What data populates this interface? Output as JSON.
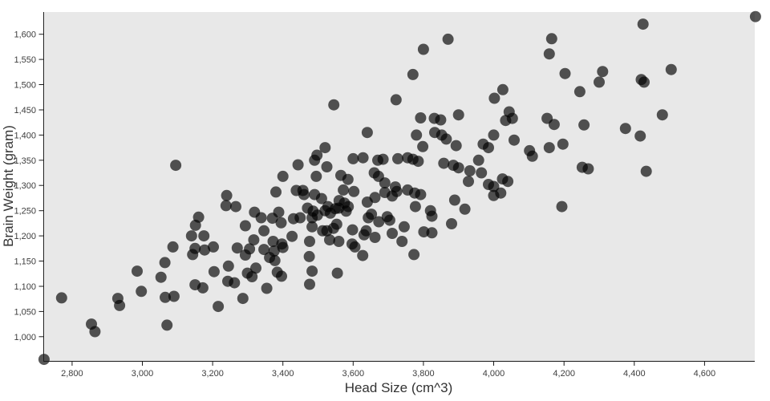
{
  "page": {
    "background": "#ffffff"
  },
  "chart_data": {
    "type": "scatter",
    "title": "",
    "xlabel": "Head Size (cm^3)",
    "ylabel": "Brain Weight (gram)",
    "x_domain": [
      2718,
      4743
    ],
    "y_domain": [
      952,
      1644
    ],
    "grid": false,
    "legend": null,
    "x_ticks": {
      "values": [
        2800,
        3000,
        3200,
        3400,
        3600,
        3800,
        4000,
        4200,
        4400,
        4600
      ],
      "labels": [
        "2,800",
        "3,000",
        "3,200",
        "3,400",
        "3,600",
        "3,800",
        "4,000",
        "4,200",
        "4,400",
        "4,600"
      ]
    },
    "y_ticks": {
      "values": [
        1000,
        1050,
        1100,
        1150,
        1200,
        1250,
        1300,
        1350,
        1400,
        1450,
        1500,
        1550,
        1600
      ],
      "labels": [
        "1,000",
        "1,050",
        "1,100",
        "1,150",
        "1,200",
        "1,250",
        "1,300",
        "1,350",
        "1,400",
        "1,450",
        "1,500",
        "1,550",
        "1,600"
      ]
    },
    "style": {
      "plot_bg": "#e8e8e8",
      "point_color": "#000000",
      "point_opacity": 0.66,
      "point_radius": 7,
      "axis_color": "#1a1a1a",
      "tick_label_color": "#3d3d3d",
      "title_color": "#333333"
    },
    "points": [
      [
        2720,
        955
      ],
      [
        2770,
        1077
      ],
      [
        2855,
        1025
      ],
      [
        2865,
        1010
      ],
      [
        2930,
        1076
      ],
      [
        2935,
        1062
      ],
      [
        2985,
        1130
      ],
      [
        2997,
        1090
      ],
      [
        3053,
        1118
      ],
      [
        3064,
        1147
      ],
      [
        3065,
        1078
      ],
      [
        3070,
        1023
      ],
      [
        3087,
        1178
      ],
      [
        3090,
        1080
      ],
      [
        3095,
        1340
      ],
      [
        3140,
        1200
      ],
      [
        3143,
        1163
      ],
      [
        3150,
        1175
      ],
      [
        3150,
        1103
      ],
      [
        3151,
        1221
      ],
      [
        3160,
        1237
      ],
      [
        3172,
        1097
      ],
      [
        3175,
        1200
      ],
      [
        3177,
        1172
      ],
      [
        3202,
        1178
      ],
      [
        3204,
        1129
      ],
      [
        3216,
        1060
      ],
      [
        3238,
        1260
      ],
      [
        3240,
        1280
      ],
      [
        3243,
        1110
      ],
      [
        3245,
        1140
      ],
      [
        3262,
        1107
      ],
      [
        3266,
        1258
      ],
      [
        3270,
        1176
      ],
      [
        3286,
        1076
      ],
      [
        3293,
        1162
      ],
      [
        3293,
        1220
      ],
      [
        3299,
        1126
      ],
      [
        3305,
        1174
      ],
      [
        3312,
        1119
      ],
      [
        3317,
        1192
      ],
      [
        3319,
        1247
      ],
      [
        3323,
        1136
      ],
      [
        3338,
        1236
      ],
      [
        3346,
        1210
      ],
      [
        3346,
        1173
      ],
      [
        3354,
        1096
      ],
      [
        3362,
        1157
      ],
      [
        3370,
        1235
      ],
      [
        3372,
        1189
      ],
      [
        3375,
        1170
      ],
      [
        3377,
        1151
      ],
      [
        3380,
        1287
      ],
      [
        3384,
        1128
      ],
      [
        3388,
        1247
      ],
      [
        3395,
        1226
      ],
      [
        3396,
        1120
      ],
      [
        3397,
        1184
      ],
      [
        3400,
        1318
      ],
      [
        3400,
        1177
      ],
      [
        3426,
        1199
      ],
      [
        3430,
        1234
      ],
      [
        3438,
        1290
      ],
      [
        3443,
        1341
      ],
      [
        3449,
        1236
      ],
      [
        3457,
        1290
      ],
      [
        3460,
        1282
      ],
      [
        3470,
        1255
      ],
      [
        3475,
        1159
      ],
      [
        3476,
        1104
      ],
      [
        3476,
        1189
      ],
      [
        3483,
        1130
      ],
      [
        3483,
        1218
      ],
      [
        3483,
        1236
      ],
      [
        3486,
        1249
      ],
      [
        3490,
        1350
      ],
      [
        3490,
        1282
      ],
      [
        3495,
        1318
      ],
      [
        3497,
        1360
      ],
      [
        3498,
        1241
      ],
      [
        3510,
        1274
      ],
      [
        3513,
        1210
      ],
      [
        3520,
        1375
      ],
      [
        3520,
        1250
      ],
      [
        3525,
        1337
      ],
      [
        3525,
        1210
      ],
      [
        3528,
        1258
      ],
      [
        3533,
        1192
      ],
      [
        3535,
        1245
      ],
      [
        3544,
        1215
      ],
      [
        3545,
        1460
      ],
      [
        3549,
        1254
      ],
      [
        3553,
        1223
      ],
      [
        3555,
        1126
      ],
      [
        3559,
        1255
      ],
      [
        3559,
        1189
      ],
      [
        3560,
        1270
      ],
      [
        3565,
        1320
      ],
      [
        3572,
        1291
      ],
      [
        3575,
        1265
      ],
      [
        3580,
        1249
      ],
      [
        3585,
        1312
      ],
      [
        3586,
        1258
      ],
      [
        3597,
        1184
      ],
      [
        3598,
        1212
      ],
      [
        3600,
        1353
      ],
      [
        3602,
        1288
      ],
      [
        3605,
        1178
      ],
      [
        3627,
        1161
      ],
      [
        3628,
        1355
      ],
      [
        3631,
        1202
      ],
      [
        3637,
        1210
      ],
      [
        3640,
        1405
      ],
      [
        3640,
        1267
      ],
      [
        3643,
        1236
      ],
      [
        3652,
        1243
      ],
      [
        3660,
        1325
      ],
      [
        3662,
        1276
      ],
      [
        3662,
        1197
      ],
      [
        3670,
        1350
      ],
      [
        3672,
        1318
      ],
      [
        3673,
        1228
      ],
      [
        3685,
        1352
      ],
      [
        3690,
        1305
      ],
      [
        3690,
        1286
      ],
      [
        3697,
        1238
      ],
      [
        3704,
        1231
      ],
      [
        3711,
        1279
      ],
      [
        3711,
        1205
      ],
      [
        3720,
        1297
      ],
      [
        3722,
        1470
      ],
      [
        3724,
        1288
      ],
      [
        3727,
        1353
      ],
      [
        3739,
        1189
      ],
      [
        3745,
        1218
      ],
      [
        3755,
        1291
      ],
      [
        3755,
        1355
      ],
      [
        3770,
        1352
      ],
      [
        3770,
        1520
      ],
      [
        3773,
        1163
      ],
      [
        3777,
        1258
      ],
      [
        3780,
        1400
      ],
      [
        3785,
        1348
      ],
      [
        3775,
        1285
      ],
      [
        3792,
        1282
      ],
      [
        3792,
        1434
      ],
      [
        3798,
        1377
      ],
      [
        3800,
        1570
      ],
      [
        3801,
        1208
      ],
      [
        3820,
        1250
      ],
      [
        3824,
        1239
      ],
      [
        3824,
        1206
      ],
      [
        3831,
        1433
      ],
      [
        3832,
        1405
      ],
      [
        3849,
        1430
      ],
      [
        3852,
        1400
      ],
      [
        3858,
        1344
      ],
      [
        3865,
        1392
      ],
      [
        3870,
        1590
      ],
      [
        3880,
        1224
      ],
      [
        3885,
        1340
      ],
      [
        3889,
        1271
      ],
      [
        3893,
        1379
      ],
      [
        3900,
        1335
      ],
      [
        3900,
        1440
      ],
      [
        3918,
        1253
      ],
      [
        3928,
        1308
      ],
      [
        3932,
        1329
      ],
      [
        3957,
        1350
      ],
      [
        3965,
        1325
      ],
      [
        3970,
        1382
      ],
      [
        3985,
        1375
      ],
      [
        3985,
        1302
      ],
      [
        4000,
        1298
      ],
      [
        4000,
        1400
      ],
      [
        4000,
        1280
      ],
      [
        4002,
        1473
      ],
      [
        4020,
        1285
      ],
      [
        4025,
        1313
      ],
      [
        4026,
        1490
      ],
      [
        4034,
        1429
      ],
      [
        4040,
        1308
      ],
      [
        4044,
        1446
      ],
      [
        4053,
        1433
      ],
      [
        4058,
        1390
      ],
      [
        4102,
        1369
      ],
      [
        4110,
        1358
      ],
      [
        4152,
        1433
      ],
      [
        4158,
        1375
      ],
      [
        4158,
        1561
      ],
      [
        4165,
        1591
      ],
      [
        4172,
        1421
      ],
      [
        4194,
        1258
      ],
      [
        4197,
        1382
      ],
      [
        4203,
        1522
      ],
      [
        4245,
        1486
      ],
      [
        4252,
        1336
      ],
      [
        4257,
        1420
      ],
      [
        4269,
        1333
      ],
      [
        4300,
        1505
      ],
      [
        4310,
        1526
      ],
      [
        4375,
        1413
      ],
      [
        4417,
        1398
      ],
      [
        4420,
        1510
      ],
      [
        4428,
        1505
      ],
      [
        4425,
        1620
      ],
      [
        4434,
        1328
      ],
      [
        4480,
        1440
      ],
      [
        4505,
        1530
      ],
      [
        4745,
        1635
      ]
    ]
  }
}
